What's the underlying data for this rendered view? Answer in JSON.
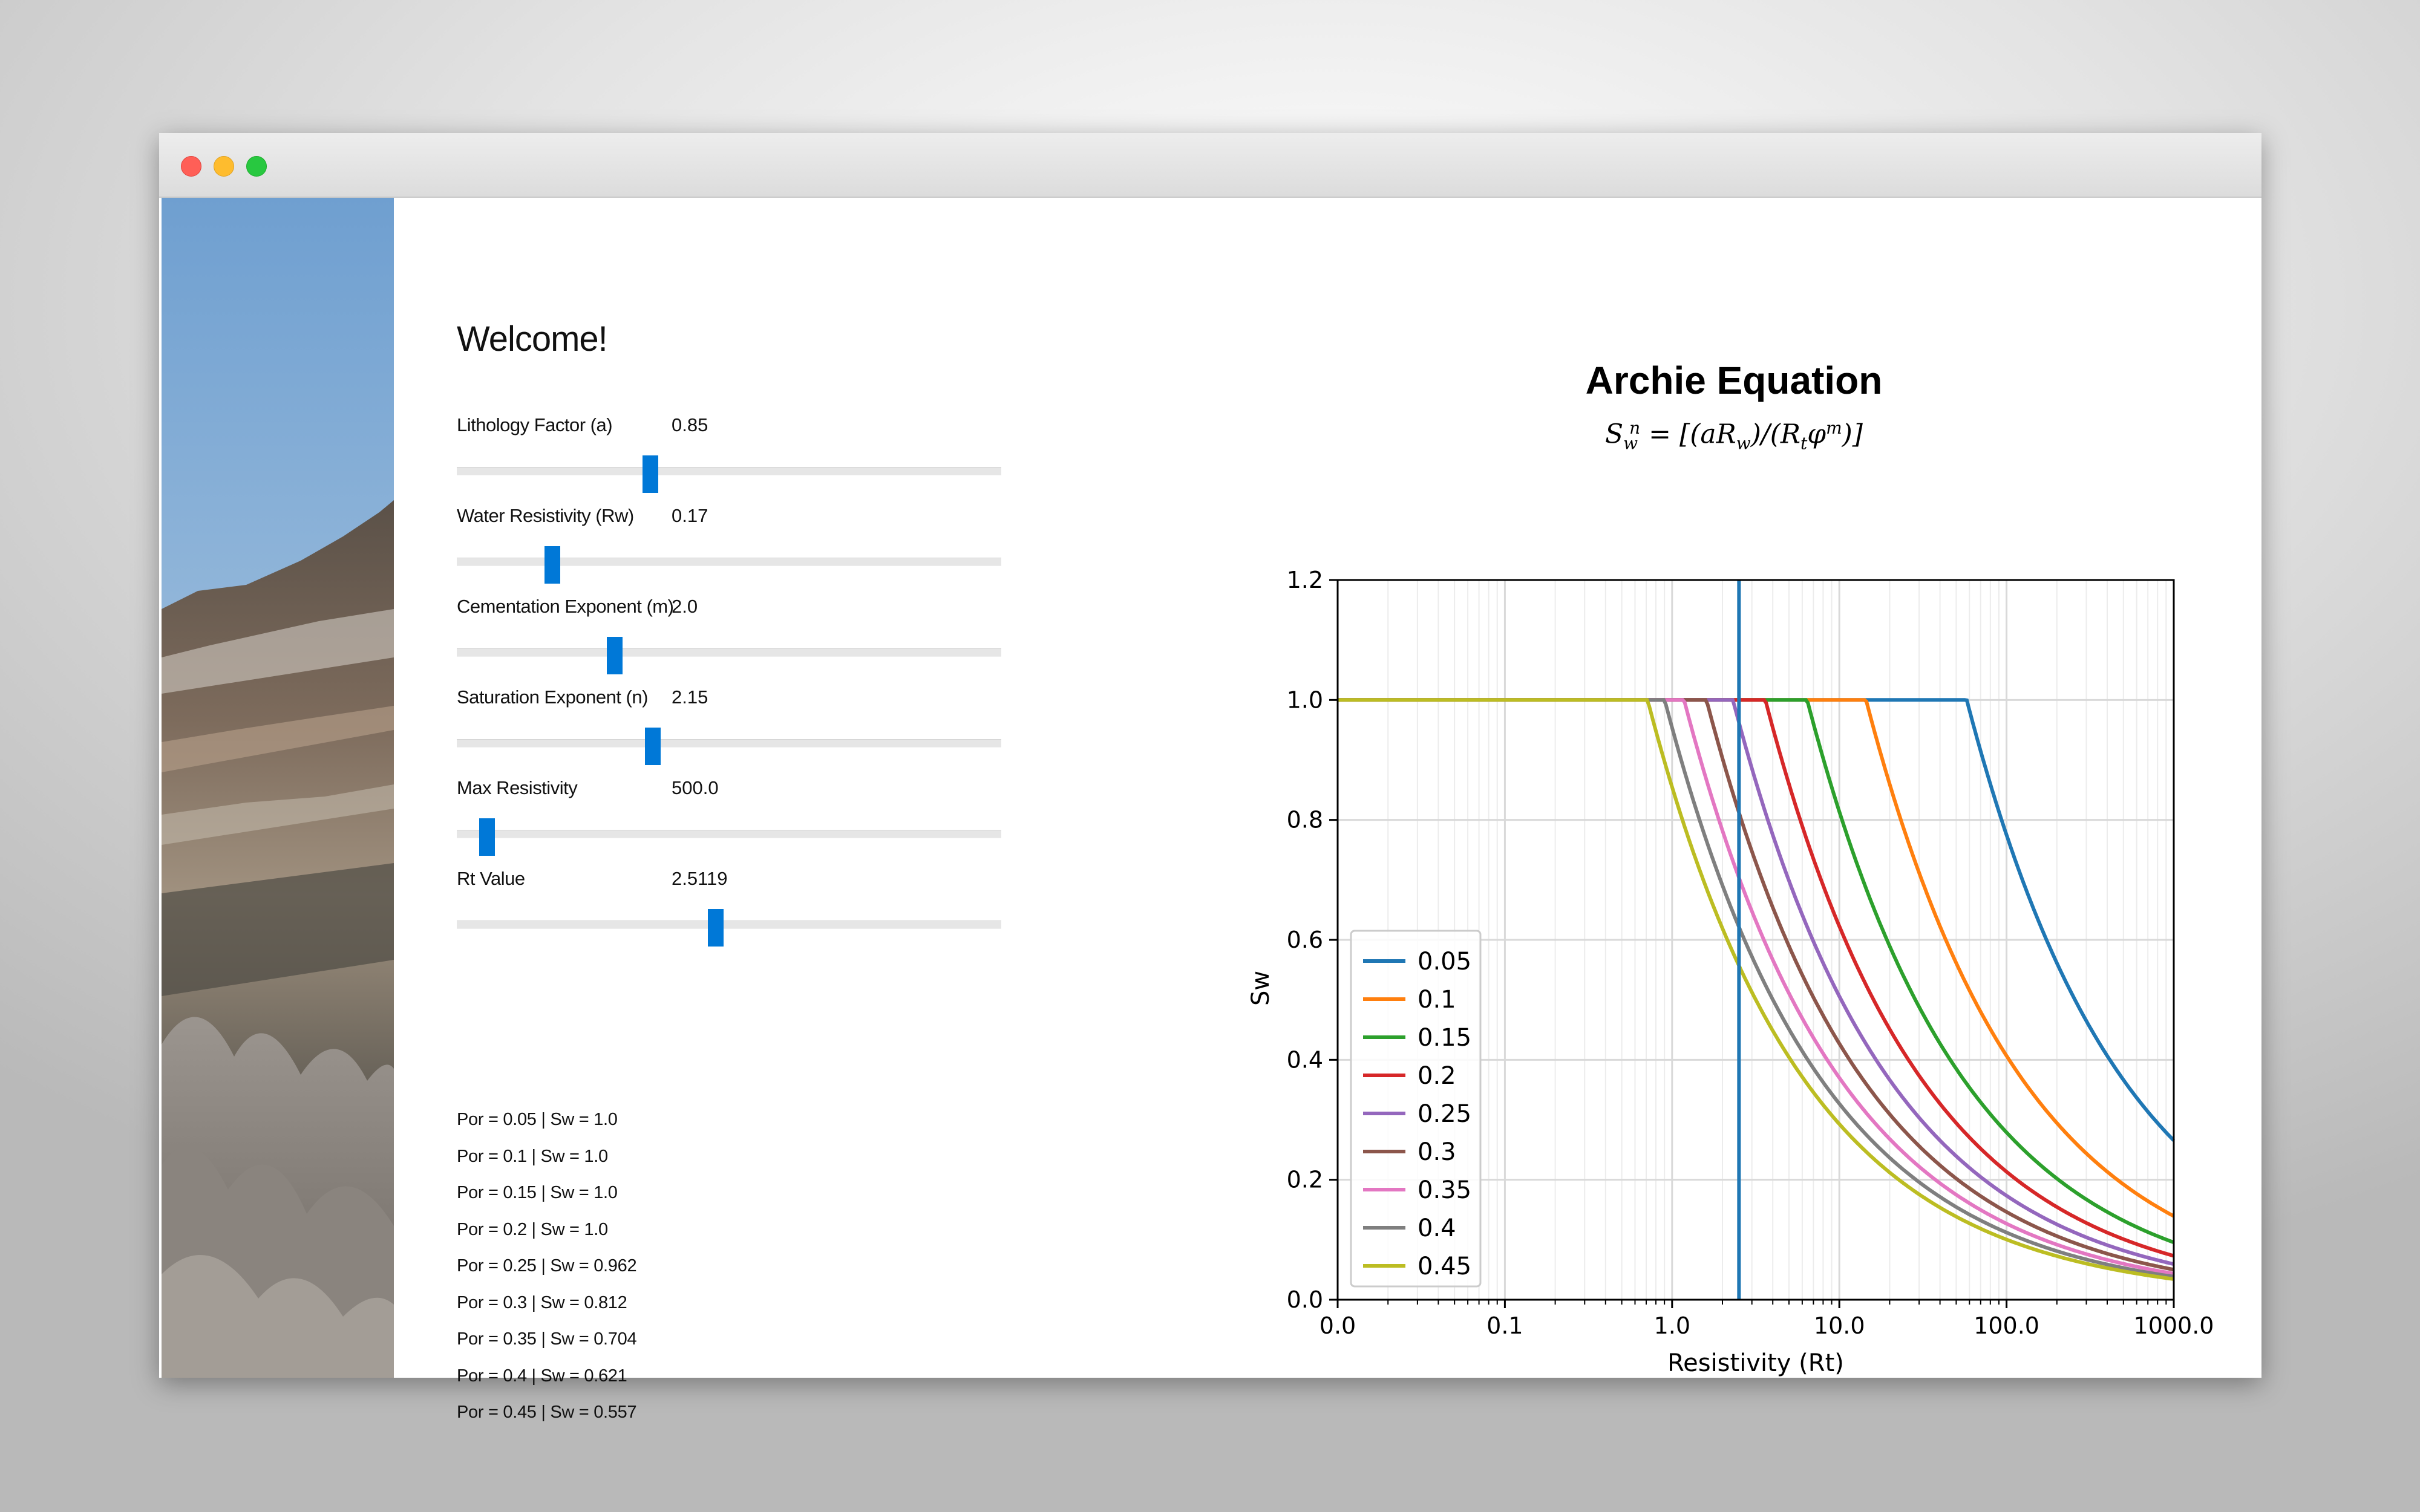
{
  "window": {
    "controls": [
      "close",
      "minimize",
      "maximize"
    ]
  },
  "sidebar": {
    "image": "rocky-canyon-landscape-photo"
  },
  "panel": {
    "welcome": "Welcome!",
    "sliders": [
      {
        "label": "Lithology Factor (a)",
        "value": "0.85",
        "fraction": 0.355
      },
      {
        "label": "Water Resistivity (Rw)",
        "value": "0.17",
        "fraction": 0.175
      },
      {
        "label": "Cementation Exponent (m)",
        "value": "2.0",
        "fraction": 0.29
      },
      {
        "label": "Saturation Exponent (n)",
        "value": "2.15",
        "fraction": 0.36
      },
      {
        "label": "Max Resistivity",
        "value": "500.0",
        "fraction": 0.055
      },
      {
        "label": "Rt Value",
        "value": "2.5119",
        "fraction": 0.475
      }
    ],
    "results": [
      "Por = 0.05 | Sw = 1.0",
      "Por = 0.1 | Sw = 1.0",
      "Por = 0.15 | Sw = 1.0",
      "Por = 0.2 | Sw = 1.0",
      "Por = 0.25 | Sw = 0.962",
      "Por = 0.3 | Sw = 0.812",
      "Por = 0.35 | Sw = 0.704",
      "Por = 0.4 | Sw = 0.621",
      "Por = 0.45 | Sw = 0.557"
    ]
  },
  "chart_data": {
    "type": "line",
    "title": "Archie Equation",
    "subtitle": "S_w^n = [(aR_w)/(R_tφ^m)]",
    "xlabel": "Resistivity (Rt)",
    "ylabel": "Sw",
    "xscale": "log",
    "xlim": [
      0.01,
      1000
    ],
    "ylim": [
      0,
      1.2
    ],
    "xtick_labels": [
      "0.0",
      "0.1",
      "1.0",
      "10.0",
      "100.0",
      "1000.0"
    ],
    "ytick_labels": [
      "0.0",
      "0.2",
      "0.4",
      "0.6",
      "0.8",
      "1.0",
      "1.2"
    ],
    "grid": true,
    "legend_position": "lower-left",
    "vline_x": 2.5119,
    "model": {
      "a": 0.85,
      "Rw": 0.17,
      "m": 2.0,
      "n": 2.15,
      "cap": 1.0
    },
    "series": [
      {
        "name": "0.05",
        "porosity": 0.05,
        "color": "#1f77b4"
      },
      {
        "name": "0.1",
        "porosity": 0.1,
        "color": "#ff7f0e"
      },
      {
        "name": "0.15",
        "porosity": 0.15,
        "color": "#2ca02c"
      },
      {
        "name": "0.2",
        "porosity": 0.2,
        "color": "#d62728"
      },
      {
        "name": "0.25",
        "porosity": 0.25,
        "color": "#9467bd"
      },
      {
        "name": "0.3",
        "porosity": 0.3,
        "color": "#8c564b"
      },
      {
        "name": "0.35",
        "porosity": 0.35,
        "color": "#e377c2"
      },
      {
        "name": "0.4",
        "porosity": 0.4,
        "color": "#7f7f7f"
      },
      {
        "name": "0.45",
        "porosity": 0.45,
        "color": "#bcbd22"
      }
    ]
  }
}
